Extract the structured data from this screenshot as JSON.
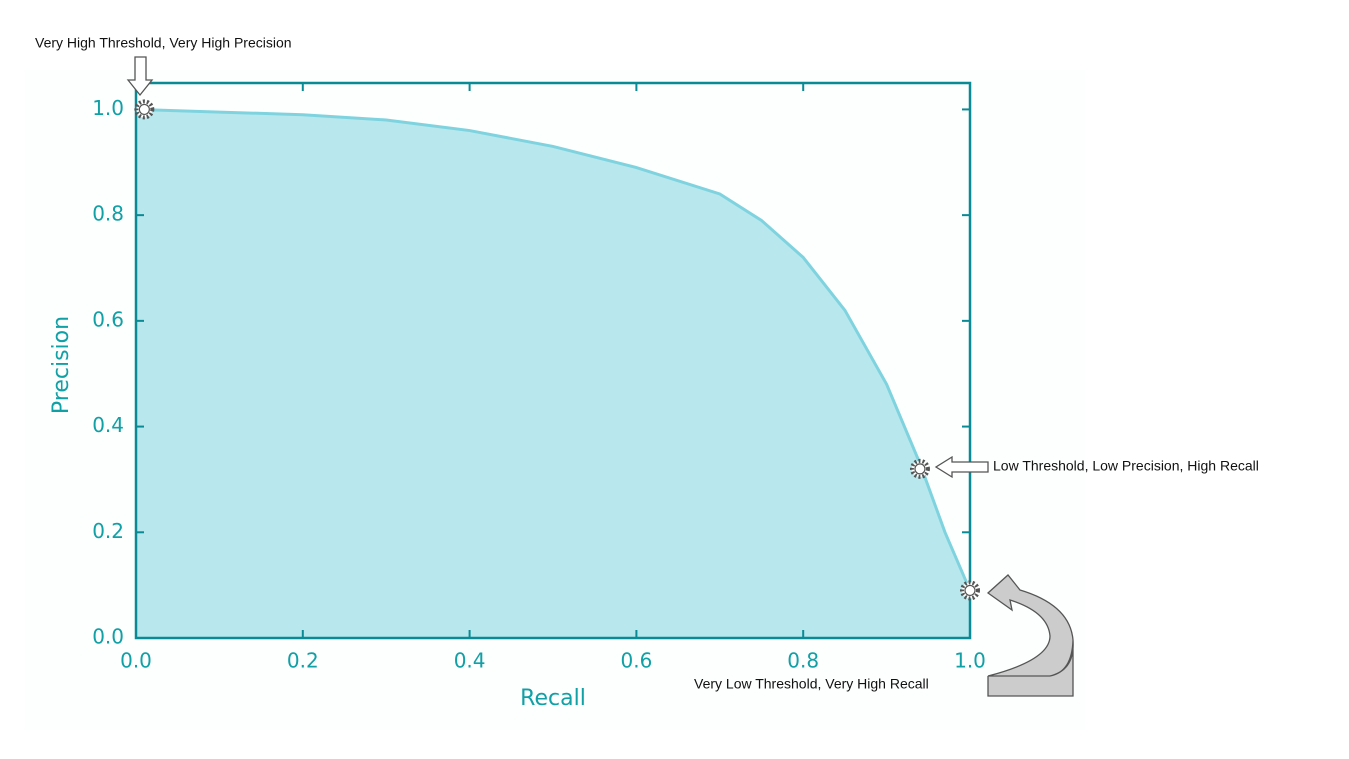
{
  "chart_data": {
    "type": "area",
    "xlabel": "Recall",
    "ylabel": "Precision",
    "x": [
      0,
      0.1,
      0.2,
      0.3,
      0.4,
      0.5,
      0.6,
      0.7,
      0.75,
      0.8,
      0.85,
      0.9,
      0.94,
      0.97,
      1.0
    ],
    "series": [
      {
        "name": "Precision",
        "color": "#7fd3df",
        "values": [
          1.0,
          0.995,
          0.99,
          0.98,
          0.96,
          0.93,
          0.89,
          0.84,
          0.79,
          0.72,
          0.62,
          0.48,
          0.33,
          0.2,
          0.09
        ]
      }
    ],
    "fill_color": "#b8e8ee",
    "xlim": [
      0,
      1
    ],
    "ylim": [
      0,
      1.05
    ],
    "xticks": [
      {
        "value": 0,
        "label": "0.0"
      },
      0.2,
      0.4,
      0.6,
      0.8,
      {
        "value": 1,
        "label": "1.0"
      }
    ],
    "yticks": [
      {
        "value": 0,
        "label": "0.0"
      },
      0.2,
      0.4,
      0.6,
      0.8,
      {
        "value": 1,
        "label": "1.0"
      }
    ],
    "annotations": [
      {
        "text": "Very High Threshold, Very High Precision",
        "x": 0.01,
        "y": 1.0
      },
      {
        "text": "Low Threshold, Low Precision, High Recall",
        "x": 0.94,
        "y": 0.32
      },
      {
        "text": "Very Low Threshold, Very High Recall",
        "x": 1.0,
        "y": 0.09
      }
    ]
  }
}
